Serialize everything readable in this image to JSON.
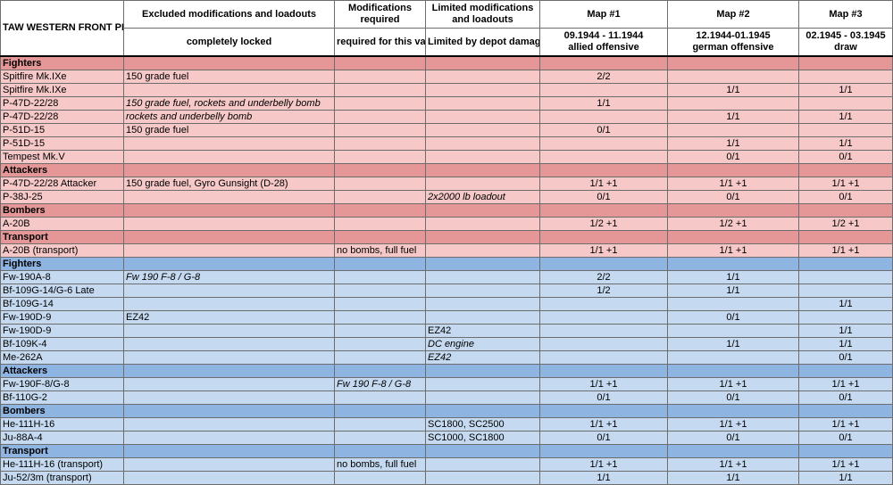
{
  "header": {
    "title": "TAW WESTERN FRONT PLANESET",
    "col_excluded_top": "Excluded modifications and loadouts",
    "col_excluded_sub": "completely locked",
    "col_required_top": "Modifications required",
    "col_required_sub": "required for this variant",
    "col_limited_top": "Limited modifications and loadouts",
    "col_limited_sub": "Limited by depot damage",
    "maps": [
      {
        "name": "Map #1",
        "dates": "09.1944 - 11.1944",
        "desc": "allied offensive"
      },
      {
        "name": "Map #2",
        "dates": "12.1944-01.1945",
        "desc": "german offensive"
      },
      {
        "name": "Map #3",
        "dates": "02.1945 - 03.1945",
        "desc": "draw"
      }
    ]
  },
  "rows": [
    {
      "type": "header",
      "side": "allied",
      "cells": [
        "Fighters",
        "",
        "",
        "",
        "",
        "",
        ""
      ]
    },
    {
      "type": "row",
      "side": "allied",
      "cells": [
        "Spitfire Mk.IXe",
        "150 grade fuel",
        "",
        "",
        "2/2",
        "",
        ""
      ]
    },
    {
      "type": "row",
      "side": "allied",
      "cells": [
        "Spitfire Mk.IXe",
        "",
        "",
        "",
        "",
        "1/1",
        "1/1"
      ]
    },
    {
      "type": "row",
      "side": "allied",
      "cells": [
        "P-47D-22/28",
        "150 grade fuel, rockets and underbelly bomb",
        "",
        "",
        "1/1",
        "",
        ""
      ],
      "italic": [
        1
      ]
    },
    {
      "type": "row",
      "side": "allied",
      "cells": [
        "P-47D-22/28",
        "rockets and underbelly bomb",
        "",
        "",
        "",
        "1/1",
        "1/1"
      ],
      "italic": [
        1
      ]
    },
    {
      "type": "row",
      "side": "allied",
      "cells": [
        "P-51D-15",
        "150 grade fuel",
        "",
        "",
        "0/1",
        "",
        ""
      ]
    },
    {
      "type": "row",
      "side": "allied",
      "cells": [
        "P-51D-15",
        "",
        "",
        "",
        "",
        "1/1",
        "1/1"
      ]
    },
    {
      "type": "row",
      "side": "allied",
      "cells": [
        "Tempest Mk.V",
        "",
        "",
        "",
        "",
        "0/1",
        "0/1"
      ]
    },
    {
      "type": "header",
      "side": "allied",
      "cells": [
        "Attackers",
        "",
        "",
        "",
        "",
        "",
        ""
      ]
    },
    {
      "type": "row",
      "side": "allied",
      "cells": [
        "P-47D-22/28 Attacker",
        "150 grade fuel, Gyro Gunsight (D-28)",
        "",
        "",
        "1/1 +1",
        "1/1 +1",
        "1/1 +1"
      ]
    },
    {
      "type": "row",
      "side": "allied",
      "cells": [
        "P-38J-25",
        "",
        "",
        "2x2000 lb loadout",
        "0/1",
        "0/1",
        "0/1"
      ],
      "italic": [
        3
      ]
    },
    {
      "type": "header",
      "side": "allied",
      "cells": [
        "Bombers",
        "",
        "",
        "",
        "",
        "",
        ""
      ]
    },
    {
      "type": "row",
      "side": "allied",
      "cells": [
        "A-20B",
        "",
        "",
        "",
        "1/2 +1",
        "1/2 +1",
        "1/2 +1"
      ]
    },
    {
      "type": "header",
      "side": "allied",
      "cells": [
        "Transport",
        "",
        "",
        "",
        "",
        "",
        ""
      ]
    },
    {
      "type": "row",
      "side": "allied",
      "cells": [
        "A-20B (transport)",
        "",
        "no bombs, full fuel",
        "",
        "1/1 +1",
        "1/1 +1",
        "1/1 +1"
      ]
    },
    {
      "type": "header",
      "side": "axis",
      "cells": [
        "Fighters",
        "",
        "",
        "",
        "",
        "",
        ""
      ]
    },
    {
      "type": "row",
      "side": "axis",
      "cells": [
        "Fw-190A-8",
        "Fw 190 F-8 / G-8",
        "",
        "",
        "2/2",
        "1/1",
        ""
      ],
      "italic": [
        1
      ]
    },
    {
      "type": "row",
      "side": "axis",
      "cells": [
        "Bf-109G-14/G-6 Late",
        "",
        "",
        "",
        "1/2",
        "1/1",
        ""
      ]
    },
    {
      "type": "row",
      "side": "axis",
      "cells": [
        "Bf-109G-14",
        "",
        "",
        "",
        "",
        "",
        "1/1"
      ]
    },
    {
      "type": "row",
      "side": "axis",
      "cells": [
        "Fw-190D-9",
        "EZ42",
        "",
        "",
        "",
        "0/1",
        ""
      ]
    },
    {
      "type": "row",
      "side": "axis",
      "cells": [
        "Fw-190D-9",
        "",
        "",
        "EZ42",
        "",
        "",
        "1/1"
      ]
    },
    {
      "type": "row",
      "side": "axis",
      "cells": [
        "Bf-109K-4",
        "",
        "",
        "DC engine",
        "",
        "1/1",
        "1/1"
      ],
      "italic": [
        3
      ]
    },
    {
      "type": "row",
      "side": "axis",
      "cells": [
        "Me-262A",
        "",
        "",
        "EZ42",
        "",
        "",
        "0/1"
      ],
      "italic": [
        3
      ]
    },
    {
      "type": "header",
      "side": "axis",
      "cells": [
        "Attackers",
        "",
        "",
        "",
        "",
        "",
        ""
      ]
    },
    {
      "type": "row",
      "side": "axis",
      "cells": [
        "Fw-190F-8/G-8",
        "",
        "Fw 190 F-8 / G-8",
        "",
        "1/1 +1",
        "1/1 +1",
        "1/1 +1"
      ],
      "italic": [
        2
      ]
    },
    {
      "type": "row",
      "side": "axis",
      "cells": [
        "Bf-110G-2",
        "",
        "",
        "",
        "0/1",
        "0/1",
        "0/1"
      ]
    },
    {
      "type": "header",
      "side": "axis",
      "cells": [
        "Bombers",
        "",
        "",
        "",
        "",
        "",
        ""
      ]
    },
    {
      "type": "row",
      "side": "axis",
      "cells": [
        "He-111H-16",
        "",
        "",
        "SC1800, SC2500",
        "1/1 +1",
        "1/1 +1",
        "1/1 +1"
      ]
    },
    {
      "type": "row",
      "side": "axis",
      "cells": [
        "Ju-88A-4",
        "",
        "",
        "SC1000, SC1800",
        "0/1",
        "0/1",
        "0/1"
      ]
    },
    {
      "type": "header",
      "side": "axis",
      "cells": [
        "Transport",
        "",
        "",
        "",
        "",
        "",
        ""
      ]
    },
    {
      "type": "row",
      "side": "axis",
      "cells": [
        "He-111H-16 (transport)",
        "",
        "no bombs, full fuel",
        "",
        "1/1 +1",
        "1/1 +1",
        "1/1 +1"
      ]
    },
    {
      "type": "row",
      "side": "axis",
      "cells": [
        "Ju-52/3m (transport)",
        "",
        "",
        "",
        "1/1",
        "1/1",
        "1/1"
      ]
    }
  ],
  "colors": {
    "allied_header": "#e59696",
    "allied_row": "#f6c8c8",
    "axis_header": "#8eb4e2",
    "axis_row": "#c5daf0"
  }
}
